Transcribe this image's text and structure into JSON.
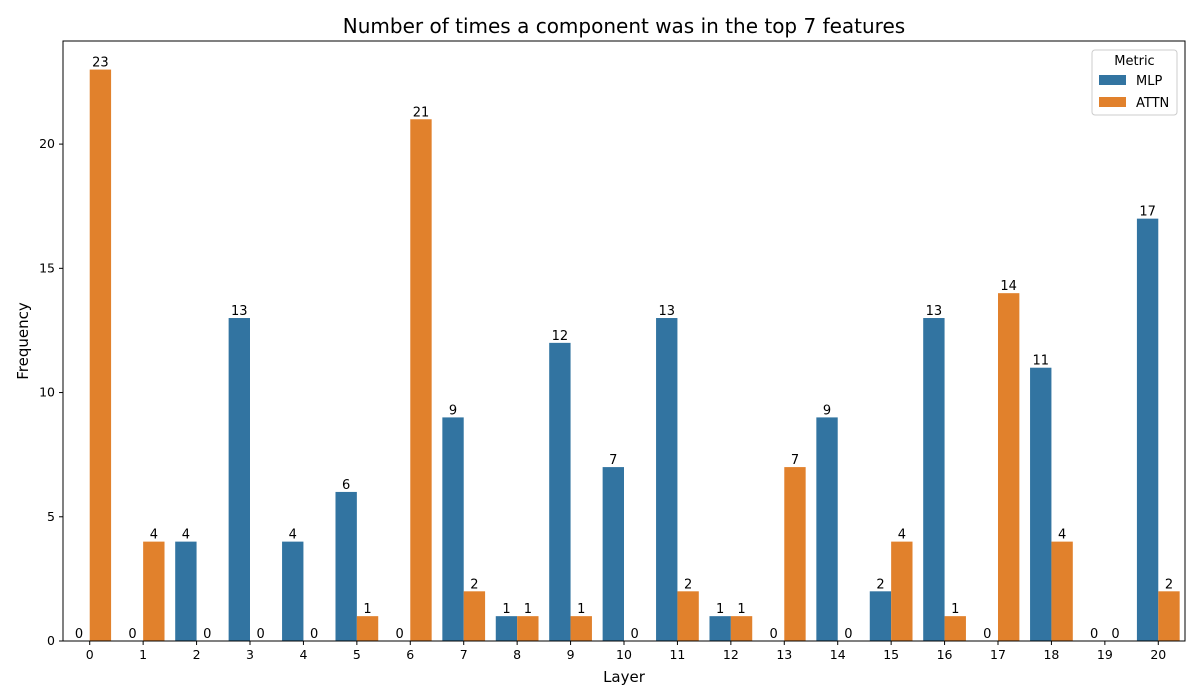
{
  "chart_data": {
    "type": "bar",
    "title": "Number of times a component was in the top 7 features",
    "xlabel": "Layer",
    "ylabel": "Frequency",
    "categories": [
      "0",
      "1",
      "2",
      "3",
      "4",
      "5",
      "6",
      "7",
      "8",
      "9",
      "10",
      "11",
      "12",
      "13",
      "14",
      "15",
      "16",
      "17",
      "18",
      "19",
      "20"
    ],
    "series": [
      {
        "name": "MLP",
        "color": "#3274a1",
        "values": [
          0,
          0,
          4,
          13,
          4,
          6,
          0,
          9,
          1,
          12,
          7,
          13,
          1,
          0,
          9,
          2,
          13,
          0,
          11,
          0,
          17
        ]
      },
      {
        "name": "ATTN",
        "color": "#e1812c",
        "values": [
          23,
          4,
          0,
          0,
          0,
          1,
          21,
          2,
          1,
          1,
          0,
          2,
          1,
          7,
          0,
          4,
          1,
          14,
          4,
          0,
          2
        ]
      }
    ],
    "ylim": [
      0,
      24.15
    ],
    "yticks": [
      0,
      5,
      10,
      15,
      20
    ],
    "legend": {
      "title": "Metric",
      "placement": "top-right"
    },
    "grid": false
  }
}
